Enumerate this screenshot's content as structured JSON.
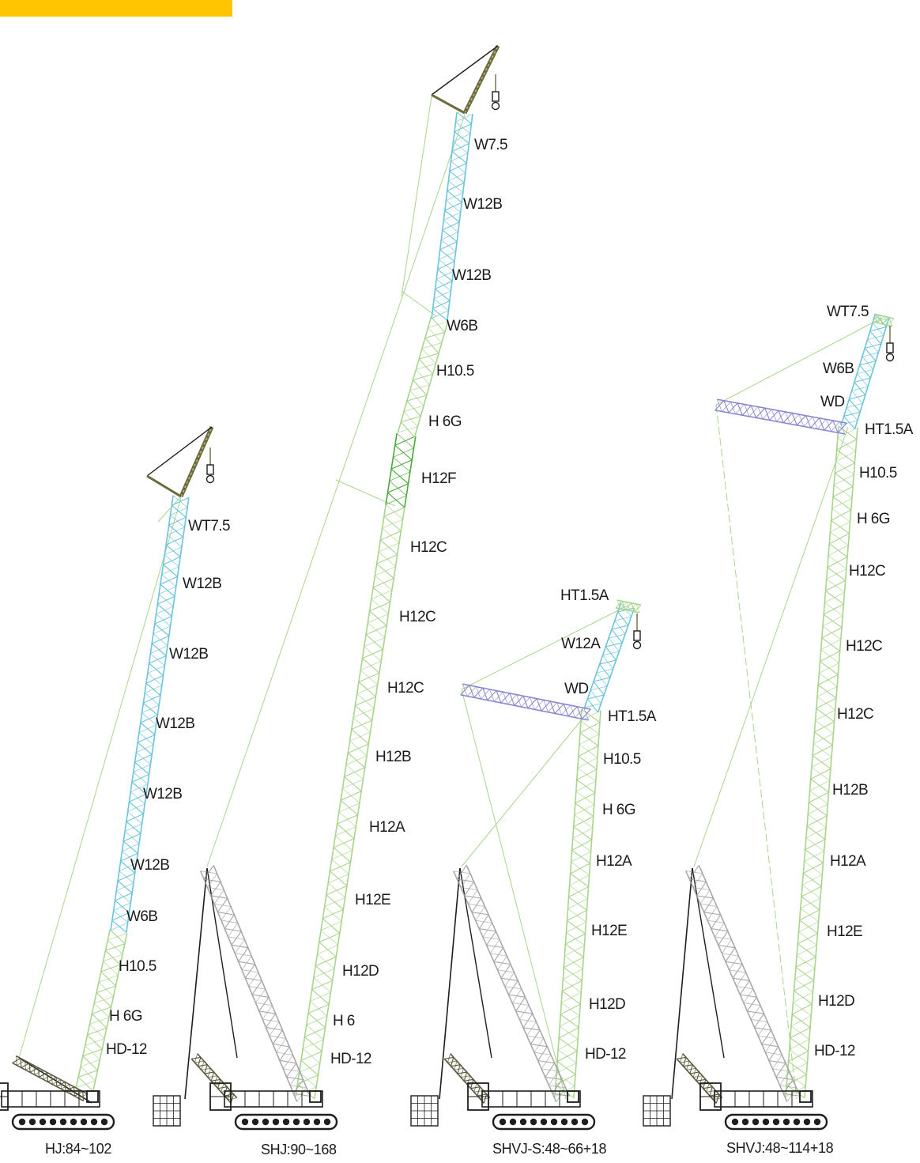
{
  "colors": {
    "banner": "#ffc500",
    "boom_main": "#a9d58b",
    "boom_jib": "#6cc4dc",
    "boom_strut": "#8a86d0",
    "boom_special": "#4ca83c",
    "head": "#6b6b3d",
    "base": "#1e1e1e",
    "mast": "#4a4a4a",
    "text": "#1b1b1b"
  },
  "cranes": [
    {
      "caption": "HJ:84~102",
      "labels": [
        "WT7.5",
        "W12B",
        "W12B",
        "W12B",
        "W12B",
        "W12B",
        "W6B",
        "H10.5",
        "H 6G",
        "HD-12"
      ]
    },
    {
      "caption": "SHJ:90~168",
      "labels": [
        "W7.5",
        "W12B",
        "W12B",
        "W6B",
        "H10.5",
        "H 6G",
        "H12F",
        "H12C",
        "H12C",
        "H12C",
        "H12B",
        "H12A",
        "H12E",
        "H12D",
        "H 6",
        "HD-12"
      ]
    },
    {
      "caption": "SHVJ-S:48~66+18",
      "labels": [
        "HT1.5A",
        "W12A",
        "WD",
        "HT1.5A",
        "H10.5",
        "H 6G",
        "H12A",
        "H12E",
        "H12D",
        "HD-12"
      ]
    },
    {
      "caption": "SHVJ:48~114+18",
      "labels": [
        "WT7.5",
        "W6B",
        "WD",
        "HT1.5A",
        "H10.5",
        "H 6G",
        "H12C",
        "H12C",
        "H12C",
        "H12B",
        "H12A",
        "H12E",
        "H12D",
        "HD-12"
      ]
    }
  ]
}
